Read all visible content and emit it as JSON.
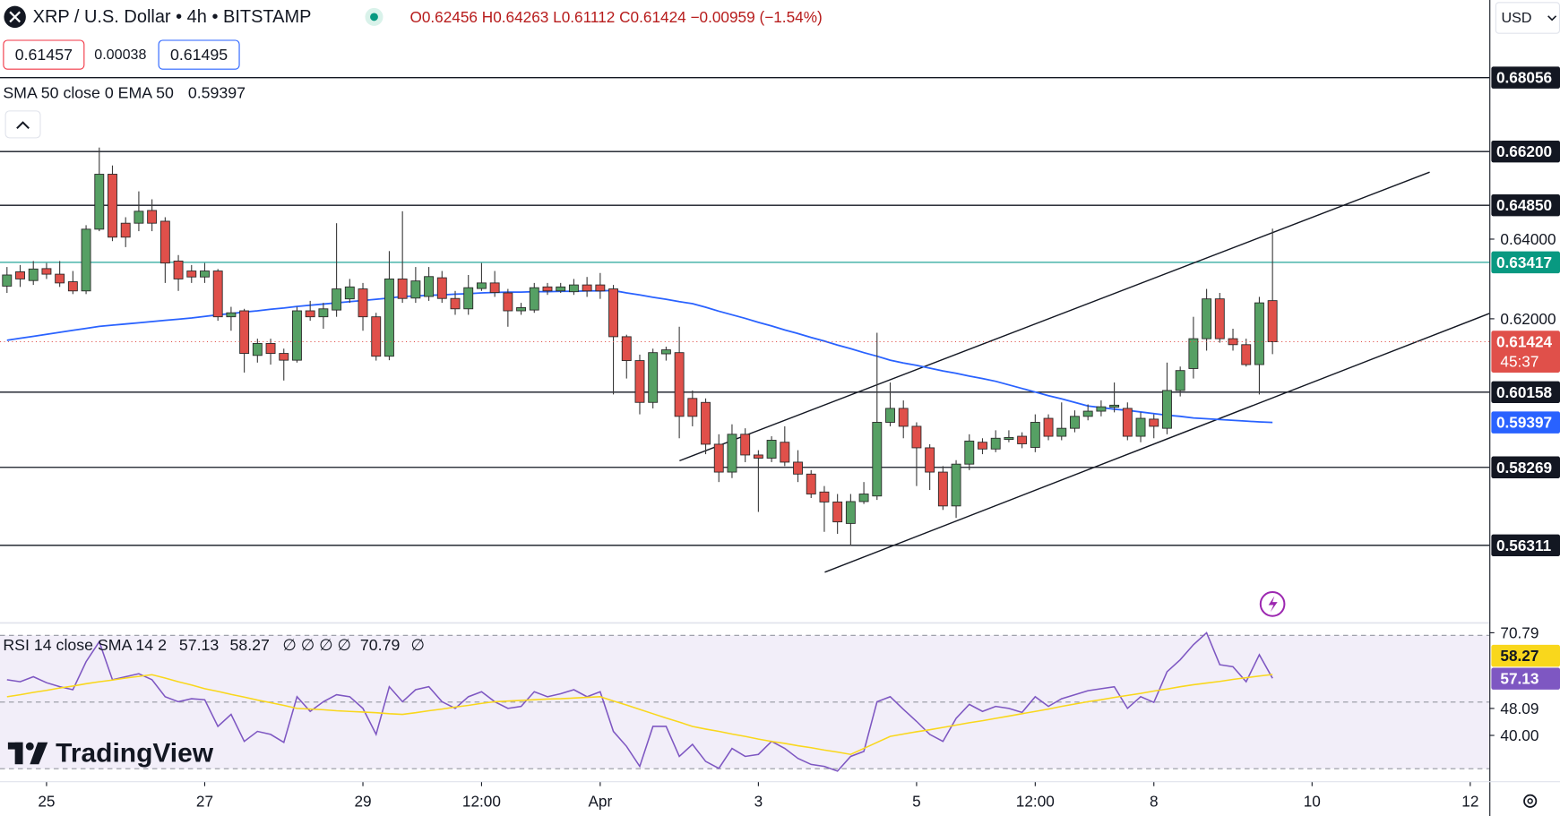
{
  "header": {
    "symbol": "XRP / U.S. Dollar • 4h • BITSTAMP",
    "open": "O0.62456",
    "high": "H0.64263",
    "low": "L0.61112",
    "close": "C0.61424",
    "change": "−0.00959 (−1.54%)",
    "bid": "0.61457",
    "spread": "0.00038",
    "ask": "0.61495",
    "currency": "USD"
  },
  "logo": "TradingView",
  "chart_data": [
    {
      "type": "candlestick",
      "up_color": "#56a064",
      "down_color": "#e0504a",
      "open": [
        0.6282,
        0.6318,
        0.6296,
        0.6326,
        0.6312,
        0.6293,
        0.627,
        0.6425,
        0.6563,
        0.644,
        0.644,
        0.6472,
        0.6445,
        0.6345,
        0.632,
        0.6305,
        0.632,
        0.6205,
        0.622,
        0.6108,
        0.6138,
        0.6113,
        0.6096,
        0.622,
        0.6205,
        0.6222,
        0.625,
        0.6275,
        0.6205,
        0.6106,
        0.63,
        0.6252,
        0.6256,
        0.6303,
        0.6251,
        0.6225,
        0.6276,
        0.629,
        0.6265,
        0.622,
        0.6222,
        0.628,
        0.627,
        0.6268,
        0.6285,
        0.6285,
        0.6275,
        0.6155,
        0.6095,
        0.599,
        0.6112,
        0.6115,
        0.6,
        0.599,
        0.5885,
        0.5815,
        0.591,
        0.5858,
        0.585,
        0.589,
        0.584,
        0.581,
        0.5765,
        0.574,
        0.5686,
        0.5741,
        0.5755,
        0.594,
        0.5975,
        0.593,
        0.5876,
        0.5815,
        0.573,
        0.5835,
        0.589,
        0.5873,
        0.5897,
        0.5905,
        0.5877,
        0.595,
        0.5905,
        0.5925,
        0.5955,
        0.5968,
        0.5978,
        0.5975,
        0.5905,
        0.5948,
        0.5925,
        0.602,
        0.6075,
        0.615,
        0.625,
        0.615,
        0.6135,
        0.6085,
        0.62456
      ],
      "high": [
        0.633,
        0.6335,
        0.6345,
        0.634,
        0.6345,
        0.632,
        0.6435,
        0.663,
        0.6585,
        0.6455,
        0.652,
        0.65,
        0.6455,
        0.636,
        0.6335,
        0.634,
        0.6325,
        0.623,
        0.6225,
        0.615,
        0.615,
        0.6125,
        0.623,
        0.6245,
        0.624,
        0.644,
        0.63,
        0.629,
        0.6215,
        0.637,
        0.647,
        0.633,
        0.633,
        0.632,
        0.627,
        0.631,
        0.634,
        0.632,
        0.6275,
        0.624,
        0.629,
        0.629,
        0.629,
        0.63,
        0.6305,
        0.6315,
        0.6285,
        0.616,
        0.611,
        0.6125,
        0.613,
        0.618,
        0.602,
        0.6,
        0.591,
        0.5935,
        0.5925,
        0.587,
        0.5905,
        0.593,
        0.587,
        0.582,
        0.578,
        0.576,
        0.576,
        0.579,
        0.6165,
        0.604,
        0.5995,
        0.594,
        0.5885,
        0.583,
        0.5845,
        0.591,
        0.59,
        0.592,
        0.592,
        0.5915,
        0.596,
        0.596,
        0.599,
        0.597,
        0.5985,
        0.5995,
        0.604,
        0.599,
        0.5965,
        0.596,
        0.609,
        0.608,
        0.6205,
        0.6275,
        0.6265,
        0.6175,
        0.615,
        0.6255,
        0.64263
      ],
      "low": [
        0.6265,
        0.628,
        0.6285,
        0.63,
        0.628,
        0.6262,
        0.6262,
        0.642,
        0.6395,
        0.638,
        0.642,
        0.642,
        0.629,
        0.627,
        0.629,
        0.629,
        0.6195,
        0.617,
        0.6065,
        0.609,
        0.6085,
        0.6045,
        0.609,
        0.6195,
        0.6175,
        0.6205,
        0.624,
        0.617,
        0.6095,
        0.6096,
        0.624,
        0.624,
        0.6245,
        0.624,
        0.621,
        0.621,
        0.627,
        0.6255,
        0.618,
        0.621,
        0.6215,
        0.626,
        0.6265,
        0.626,
        0.6255,
        0.625,
        0.601,
        0.605,
        0.596,
        0.5975,
        0.6095,
        0.59,
        0.593,
        0.586,
        0.579,
        0.58,
        0.584,
        0.5715,
        0.584,
        0.583,
        0.579,
        0.575,
        0.5665,
        0.566,
        0.563,
        0.5735,
        0.5745,
        0.593,
        0.59,
        0.578,
        0.577,
        0.572,
        0.57,
        0.582,
        0.586,
        0.5865,
        0.589,
        0.5875,
        0.5865,
        0.5895,
        0.5895,
        0.5915,
        0.5945,
        0.5955,
        0.5965,
        0.5895,
        0.589,
        0.59,
        0.591,
        0.6005,
        0.605,
        0.612,
        0.614,
        0.612,
        0.608,
        0.601,
        0.61112
      ],
      "close": [
        0.631,
        0.63,
        0.6325,
        0.6312,
        0.629,
        0.627,
        0.6425,
        0.6563,
        0.6405,
        0.6405,
        0.647,
        0.644,
        0.634,
        0.63,
        0.6305,
        0.632,
        0.6205,
        0.6215,
        0.6113,
        0.6138,
        0.6113,
        0.6096,
        0.622,
        0.6205,
        0.6225,
        0.6275,
        0.628,
        0.6205,
        0.6106,
        0.63,
        0.6251,
        0.6295,
        0.6306,
        0.6251,
        0.6225,
        0.6278,
        0.629,
        0.6266,
        0.622,
        0.6228,
        0.6278,
        0.627,
        0.628,
        0.6285,
        0.627,
        0.627,
        0.6155,
        0.6095,
        0.599,
        0.6115,
        0.6122,
        0.5955,
        0.5955,
        0.5885,
        0.5815,
        0.591,
        0.5858,
        0.585,
        0.5895,
        0.584,
        0.581,
        0.576,
        0.574,
        0.569,
        0.5741,
        0.576,
        0.594,
        0.5975,
        0.593,
        0.5876,
        0.5815,
        0.573,
        0.5835,
        0.5893,
        0.5873,
        0.59,
        0.5902,
        0.5886,
        0.594,
        0.5905,
        0.5925,
        0.5955,
        0.5968,
        0.5979,
        0.5983,
        0.5905,
        0.595,
        0.593,
        0.602,
        0.607,
        0.615,
        0.625,
        0.615,
        0.6135,
        0.6085,
        0.624,
        0.61424
      ],
      "ema": {
        "label": "SMA 50 close 0 EMA 50",
        "color": "#2962ff",
        "values": [
          0.6146,
          0.6151,
          0.6156,
          0.6161,
          0.6166,
          0.6171,
          0.6176,
          0.6181,
          0.6184,
          0.6187,
          0.619,
          0.6193,
          0.6196,
          0.6199,
          0.6202,
          0.6206,
          0.621,
          0.6213,
          0.6217,
          0.622,
          0.6224,
          0.6227,
          0.6231,
          0.6234,
          0.6237,
          0.624,
          0.6243,
          0.6246,
          0.6249,
          0.6252,
          0.6256,
          0.6257,
          0.6259,
          0.626,
          0.6262,
          0.6263,
          0.6265,
          0.6266,
          0.6267,
          0.6267,
          0.6268,
          0.6268,
          0.6269,
          0.6269,
          0.627,
          0.627,
          0.6271,
          0.6265,
          0.626,
          0.6254,
          0.6249,
          0.6243,
          0.6238,
          0.6229,
          0.6219,
          0.621,
          0.6201,
          0.6191,
          0.6182,
          0.6172,
          0.6163,
          0.6153,
          0.6144,
          0.6134,
          0.6125,
          0.6115,
          0.6106,
          0.6096,
          0.6089,
          0.6083,
          0.6076,
          0.6069,
          0.6063,
          0.6056,
          0.605,
          0.6043,
          0.6034,
          0.6025,
          0.6016,
          0.6007,
          0.5999,
          0.599,
          0.5981,
          0.5977,
          0.5973,
          0.597,
          0.5966,
          0.5962,
          0.5958,
          0.5955,
          0.5951,
          0.5949,
          0.5947,
          0.5945,
          0.5943,
          0.5941,
          0.59397
        ]
      },
      "countdown": "45:37",
      "ylim": [
        0.54387,
        0.70005
      ],
      "yticks": [
        {
          "value": 0.64,
          "label": "0.64000"
        },
        {
          "value": 0.62,
          "label": "0.62000"
        }
      ],
      "levels": [
        0.68056,
        {
          "value": 0.662,
          "label": "0.66200"
        },
        {
          "value": 0.6485,
          "label": "0.64850"
        },
        0.60158,
        0.58269,
        0.56311
      ],
      "level_color": "#131722",
      "highlight_level": 0.63417,
      "highlight_color": "#26a69a",
      "highlight_label_color": "#089981",
      "xlim": [
        -0.53,
        112.45
      ],
      "xticks": [
        {
          "value": 3,
          "label": "25"
        },
        {
          "value": 15,
          "label": "27"
        },
        {
          "value": 27,
          "label": "29"
        },
        {
          "value": 36,
          "label": "12:00"
        },
        {
          "value": 45,
          "label": "Apr"
        },
        {
          "value": 57,
          "label": "3"
        },
        {
          "value": 69,
          "label": "5"
        },
        {
          "value": 78,
          "label": "12:00"
        },
        {
          "value": 87,
          "label": "8"
        },
        {
          "value": 99,
          "label": "10"
        },
        {
          "value": 111,
          "label": "12"
        }
      ]
    },
    {
      "type": "line",
      "label": "RSI 14 close SMA 14 2",
      "legend_marks": "∅ ∅ ∅ ∅",
      "legend_tail": "∅",
      "series": [
        {
          "color": "#7e57c2",
          "values": [
            56.7,
            56.1,
            57.6,
            55.8,
            54.6,
            53.7,
            62.1,
            68.1,
            56.7,
            57.6,
            58.5,
            56.7,
            51.6,
            50.1,
            51.0,
            50.7,
            42.7,
            46.3,
            38.2,
            41.2,
            40.3,
            37.9,
            51.6,
            47.2,
            50.1,
            52.2,
            51.6,
            48.1,
            40.3,
            54.6,
            50.1,
            53.7,
            54.6,
            50.1,
            48.1,
            51.6,
            53.1,
            50.1,
            48.1,
            48.7,
            53.1,
            51.6,
            52.5,
            53.7,
            51.6,
            53.1,
            41.2,
            36.7,
            30.7,
            42.7,
            42.7,
            33.7,
            37.3,
            32.2,
            30.1,
            36.1,
            33.7,
            34.3,
            38.2,
            36.1,
            33.1,
            31.3,
            30.7,
            29.3,
            33.7,
            35.2,
            50.1,
            51.6,
            47.8,
            44.2,
            40.3,
            38.2,
            45.1,
            49.3,
            47.2,
            48.7,
            48.1,
            46.9,
            51.6,
            48.7,
            51.0,
            52.2,
            53.4,
            54.0,
            54.6,
            48.1,
            51.6,
            49.9,
            59.1,
            62.7,
            67.2,
            70.79,
            61.2,
            60.6,
            56.1,
            64.2,
            57.13
          ]
        },
        {
          "color": "#f9d71c",
          "values": [
            51.6,
            52.2,
            52.9,
            53.5,
            54.2,
            54.8,
            55.5,
            56.1,
            56.6,
            57.2,
            57.7,
            58.2,
            57.2,
            56.1,
            55.1,
            54.0,
            53.2,
            52.3,
            51.5,
            50.6,
            49.8,
            49.0,
            48.1,
            47.9,
            47.7,
            47.4,
            47.2,
            47.0,
            46.8,
            46.5,
            46.3,
            46.8,
            47.4,
            47.9,
            48.5,
            49.0,
            49.6,
            50.1,
            50.3,
            50.5,
            50.7,
            50.9,
            51.0,
            51.2,
            51.4,
            51.6,
            50.3,
            49.1,
            47.8,
            46.5,
            45.2,
            44.0,
            42.7,
            41.9,
            41.2,
            40.4,
            39.7,
            38.9,
            38.2,
            37.6,
            36.9,
            36.3,
            35.6,
            35.0,
            34.3,
            36.1,
            37.9,
            39.7,
            40.4,
            41.1,
            41.7,
            42.4,
            43.1,
            43.8,
            44.4,
            45.1,
            45.8,
            46.5,
            47.2,
            47.9,
            48.7,
            49.4,
            50.1,
            50.7,
            51.4,
            52.0,
            52.6,
            53.3,
            53.9,
            54.6,
            55.2,
            55.7,
            56.2,
            56.8,
            57.3,
            57.8,
            58.27
          ]
        }
      ],
      "ylim": [
        26.27,
        73.43
      ],
      "yticks": [
        70.79,
        48.09,
        {
          "value": 40,
          "label": "40.00"
        }
      ],
      "bands": [
        70,
        50,
        30
      ],
      "band_color": "#7e57c2"
    }
  ]
}
